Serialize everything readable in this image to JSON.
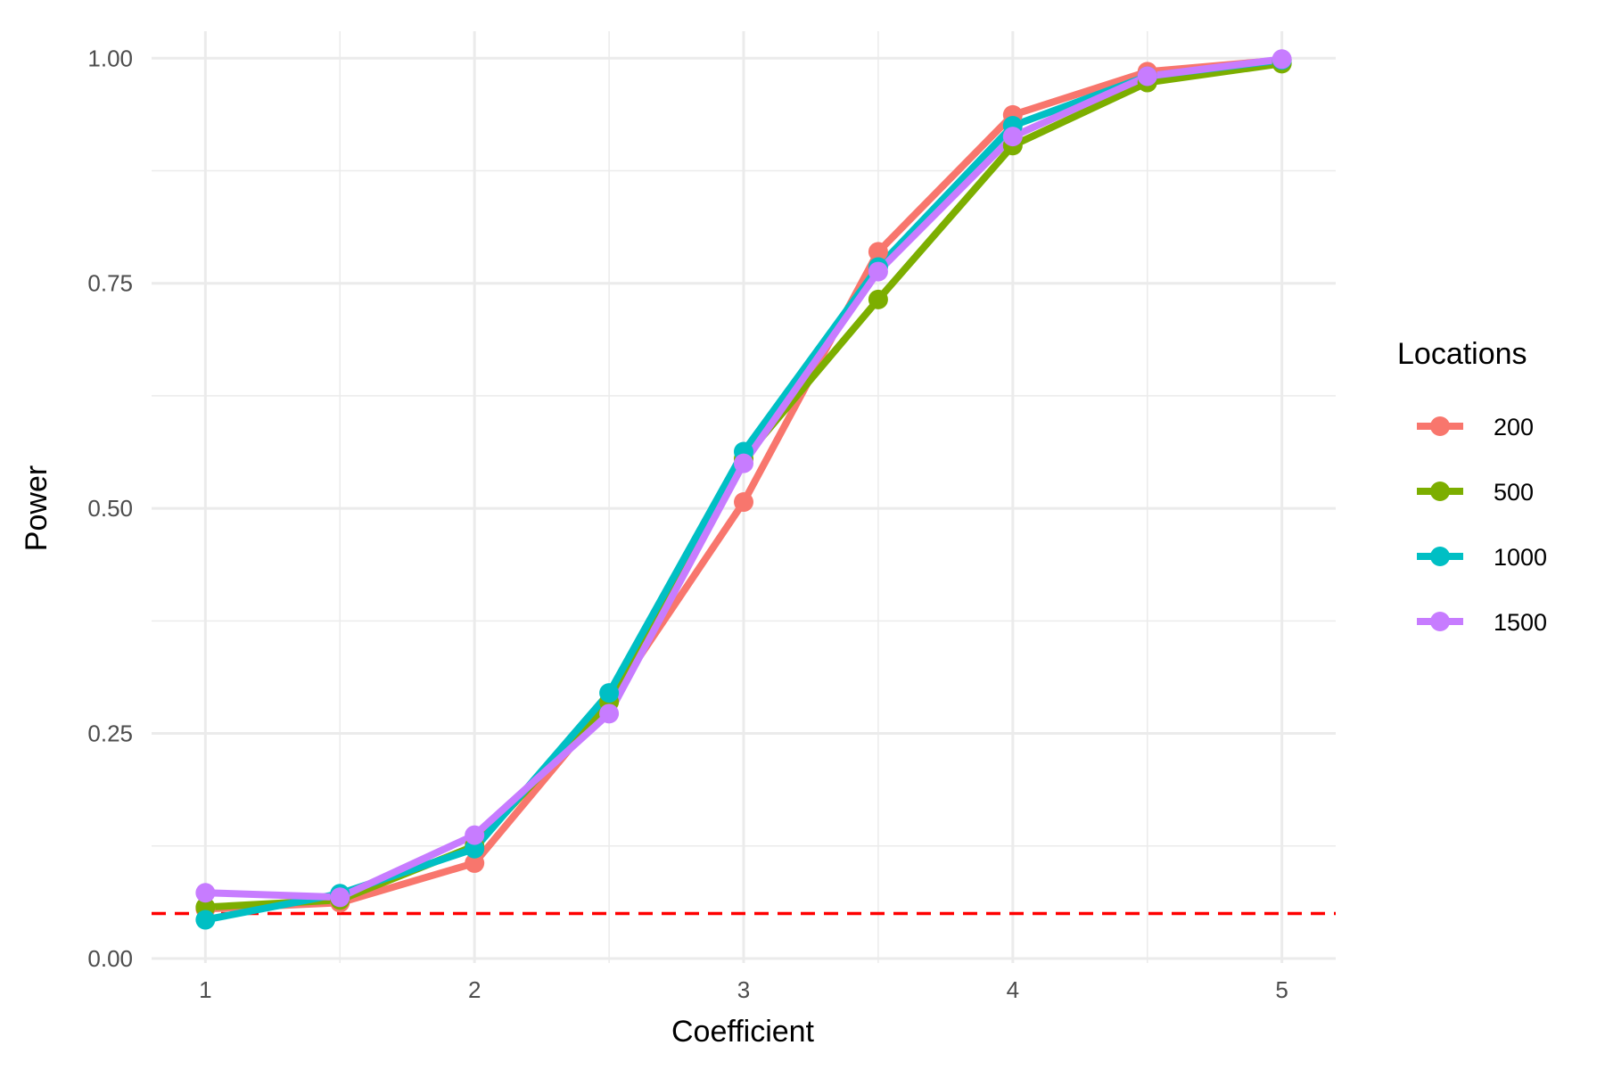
{
  "chart_data": {
    "type": "line",
    "title": "",
    "xlabel": "Coefficient",
    "ylabel": "Power",
    "xlim": [
      0.8,
      5.2
    ],
    "ylim": [
      -0.005,
      1.03
    ],
    "x_ticks": [
      1,
      2,
      3,
      4,
      5
    ],
    "x_tick_labels": [
      "1",
      "2",
      "3",
      "4",
      "5"
    ],
    "x_minor_ticks": [
      1.5,
      2.5,
      3.5,
      4.5
    ],
    "y_ticks": [
      0,
      0.25,
      0.5,
      0.75,
      1
    ],
    "y_tick_labels": [
      "0.00",
      "0.25",
      "0.50",
      "0.75",
      "1.00"
    ],
    "y_minor_ticks": [
      0.125,
      0.375,
      0.625,
      0.875
    ],
    "grid": true,
    "x": [
      1,
      1.5,
      2,
      2.5,
      3,
      3.5,
      4,
      4.5,
      5
    ],
    "legend": {
      "title": "Locations",
      "position": "right"
    },
    "reference_line": {
      "y": 0.05,
      "color": "#ff0000",
      "style": "dashed"
    },
    "series": [
      {
        "name": "200",
        "color": "#F8766D",
        "values": [
          0.055,
          0.062,
          0.106,
          0.285,
          0.507,
          0.785,
          0.937,
          0.985,
          0.998
        ]
      },
      {
        "name": "500",
        "color": "#7CAE00",
        "values": [
          0.057,
          0.065,
          0.125,
          0.285,
          0.555,
          0.732,
          0.903,
          0.973,
          0.994
        ]
      },
      {
        "name": "1000",
        "color": "#00BFC4",
        "values": [
          0.043,
          0.072,
          0.122,
          0.295,
          0.563,
          0.768,
          0.925,
          0.98,
          0.998
        ]
      },
      {
        "name": "1500",
        "color": "#C77CFF",
        "values": [
          0.073,
          0.068,
          0.137,
          0.272,
          0.55,
          0.763,
          0.913,
          0.98,
          0.999
        ]
      }
    ]
  }
}
